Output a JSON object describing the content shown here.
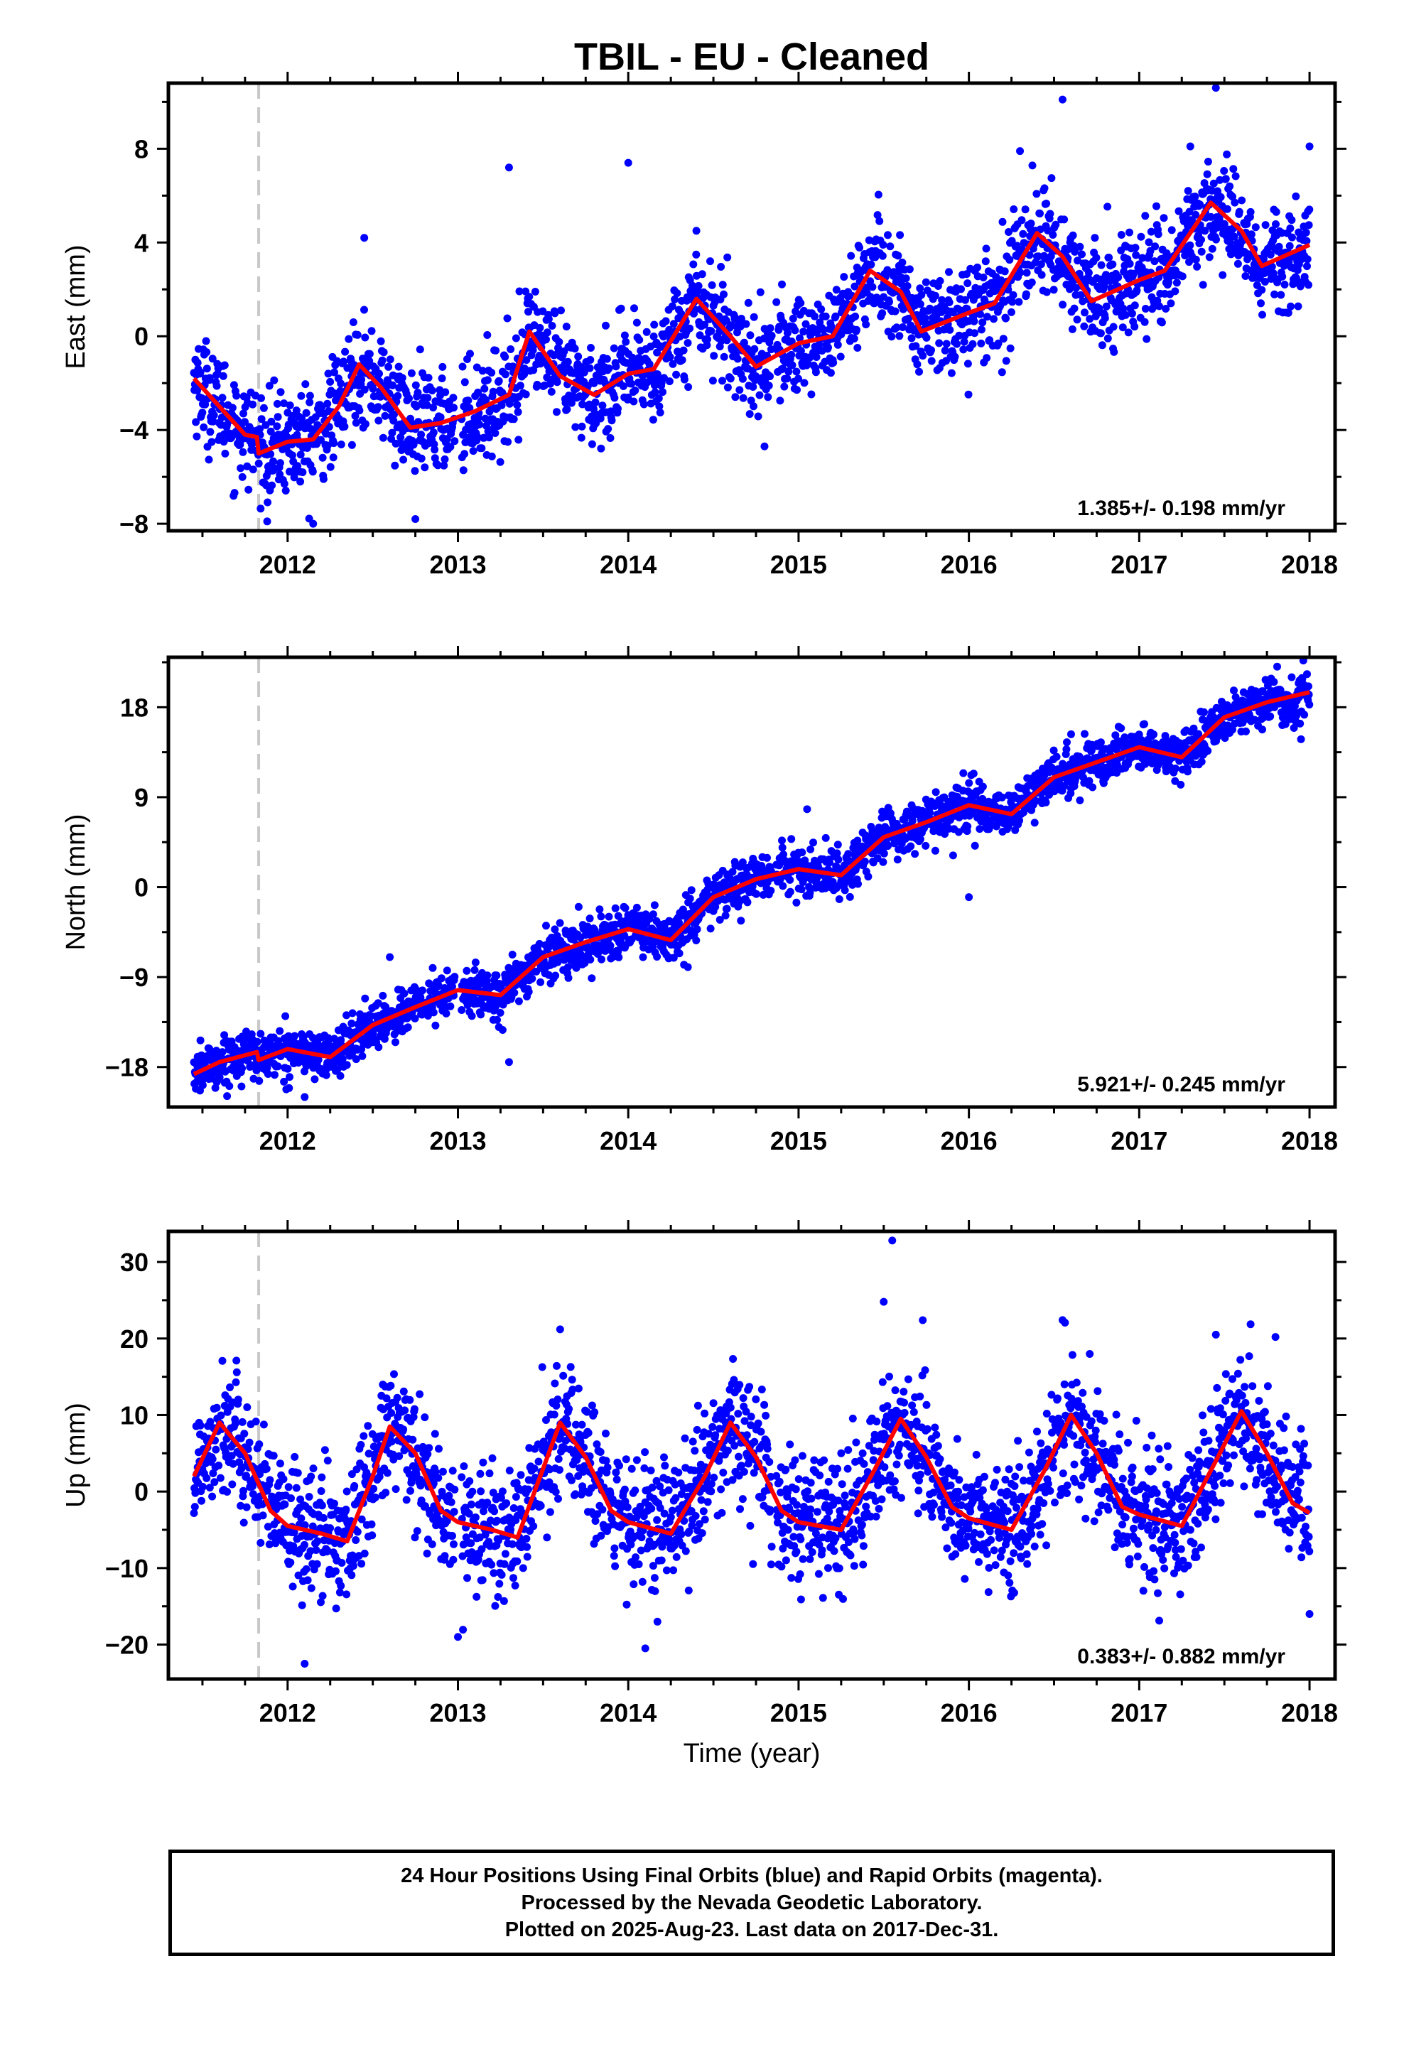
{
  "title": "TBIL  - EU - Cleaned",
  "xlabel": "Time (year)",
  "caption": {
    "line1": "24 Hour Positions Using Final Orbits (blue) and Rapid Orbits (magenta).",
    "line2": "Processed by the Nevada Geodetic Laboratory.",
    "line3": "Plotted on 2025-Aug-23. Last data on 2017-Dec-31."
  },
  "colors": {
    "points": "#0000ff",
    "fit": "#ff0000",
    "event_line": "#c8c8c8"
  },
  "chart_data": [
    {
      "type": "scatter",
      "component": "East",
      "ylabel": "East (mm)",
      "xlim": [
        2011.3,
        2018.15
      ],
      "ylim": [
        -8.3,
        10.8
      ],
      "xticks": [
        2012,
        2013,
        2014,
        2015,
        2016,
        2017,
        2018
      ],
      "yticks": [
        -8,
        -4,
        0,
        4,
        8
      ],
      "ytick_labels": [
        "−8",
        "−4",
        "0",
        "4",
        "8"
      ],
      "event_line_x": 2011.83,
      "rate_label": "1.385+/- 0.198 mm/yr",
      "model": {
        "intercept": -3.05,
        "offset_at_event": -0.6,
        "rate": 1.385,
        "seasonal_amp": 1.45,
        "peak_year_frac": 0.45,
        "scatter": 1.1
      },
      "outliers": [
        [
          2016.55,
          10.1
        ],
        [
          2017.45,
          10.6
        ],
        [
          2013.3,
          7.2
        ],
        [
          2014.0,
          7.4
        ],
        [
          2016.3,
          7.9
        ],
        [
          2017.3,
          8.1
        ],
        [
          2018.0,
          8.1
        ],
        [
          2012.45,
          4.2
        ],
        [
          2014.4,
          4.5
        ],
        [
          2011.88,
          -7.9
        ],
        [
          2012.75,
          -7.8
        ],
        [
          2014.8,
          -4.7
        ],
        [
          2012.15,
          -8.0
        ]
      ],
      "fit": {
        "x": [
          2011.45,
          2011.6,
          2011.75,
          2011.82,
          2011.83,
          2012.0,
          2012.15,
          2012.3,
          2012.42,
          2012.55,
          2012.72,
          2012.9,
          2013.1,
          2013.3,
          2013.42,
          2013.6,
          2013.8,
          2014.0,
          2014.15,
          2014.4,
          2014.6,
          2014.75,
          2015.0,
          2015.2,
          2015.42,
          2015.6,
          2015.72,
          2016.0,
          2016.15,
          2016.4,
          2016.55,
          2016.72,
          2017.0,
          2017.15,
          2017.42,
          2017.6,
          2017.72,
          2018.0
        ],
        "y": [
          -1.8,
          -3.0,
          -4.2,
          -4.3,
          -5.0,
          -4.5,
          -4.4,
          -3.0,
          -1.2,
          -2.2,
          -3.9,
          -3.7,
          -3.2,
          -2.5,
          0.2,
          -1.7,
          -2.5,
          -1.6,
          -1.4,
          1.6,
          0.0,
          -1.3,
          -0.3,
          0.0,
          2.8,
          1.9,
          0.2,
          1.0,
          1.4,
          4.4,
          3.4,
          1.5,
          2.4,
          2.8,
          5.7,
          4.5,
          3.0,
          3.9
        ]
      }
    },
    {
      "type": "scatter",
      "component": "North",
      "ylabel": "North (mm)",
      "xlim": [
        2011.3,
        2018.15
      ],
      "ylim": [
        -22.0,
        23.0
      ],
      "xticks": [
        2012,
        2013,
        2014,
        2015,
        2016,
        2017,
        2018
      ],
      "yticks": [
        -18,
        -9,
        0,
        9,
        18
      ],
      "ytick_labels": [
        "−18",
        "−9",
        "0",
        "9",
        "18"
      ],
      "event_line_x": 2011.83,
      "rate_label": "5.921+/- 0.245 mm/yr",
      "model": {
        "intercept": -17.6,
        "offset_at_event": 0.0,
        "rate": 5.921,
        "seasonal_amp": 0.9,
        "peak_year_frac": 0.7,
        "scatter": 1.2
      },
      "outliers": [
        [
          2012.6,
          -7.0
        ],
        [
          2015.05,
          7.8
        ],
        [
          2016.6,
          15.3
        ],
        [
          2016.0,
          -1.0
        ],
        [
          2013.3,
          -17.5
        ],
        [
          2014.35,
          -8.0
        ],
        [
          2017.95,
          14.8
        ],
        [
          2012.1,
          -21.0
        ]
      ],
      "fit": {
        "x": [
          2011.45,
          2011.6,
          2011.82,
          2011.83,
          2012.0,
          2012.25,
          2012.5,
          2012.75,
          2013.0,
          2013.25,
          2013.5,
          2013.75,
          2014.0,
          2014.25,
          2014.5,
          2014.75,
          2015.0,
          2015.25,
          2015.5,
          2015.75,
          2016.0,
          2016.25,
          2016.5,
          2016.75,
          2017.0,
          2017.25,
          2017.5,
          2017.75,
          2018.0
        ],
        "y": [
          -18.7,
          -17.5,
          -16.5,
          -17.3,
          -16.2,
          -17.0,
          -13.8,
          -12.0,
          -10.3,
          -10.8,
          -7.0,
          -5.5,
          -4.2,
          -5.3,
          -1.0,
          0.8,
          1.8,
          1.2,
          5.0,
          6.5,
          8.2,
          7.3,
          11.0,
          12.5,
          14.0,
          13.0,
          17.0,
          18.5,
          19.5
        ]
      }
    },
    {
      "type": "scatter",
      "component": "Up",
      "ylabel": "Up (mm)",
      "xlim": [
        2011.3,
        2018.15
      ],
      "ylim": [
        -24.5,
        34.0
      ],
      "xticks": [
        2012,
        2013,
        2014,
        2015,
        2016,
        2017,
        2018
      ],
      "yticks": [
        -20,
        -10,
        0,
        10,
        20,
        30
      ],
      "ytick_labels": [
        "−20",
        "−10",
        "0",
        "10",
        "20",
        "30"
      ],
      "event_line_x": 2011.83,
      "rate_label": "0.383+/- 0.882 mm/yr",
      "model": {
        "intercept": 0.0,
        "offset_at_event": 0.0,
        "rate": 0.383,
        "seasonal_amp": 7.5,
        "peak_year_frac": 0.6,
        "scatter": 4.2
      },
      "outliers": [
        [
          2015.55,
          32.8
        ],
        [
          2015.5,
          24.8
        ],
        [
          2016.55,
          22.4
        ],
        [
          2013.6,
          21.2
        ],
        [
          2012.1,
          -22.5
        ],
        [
          2014.1,
          -20.5
        ],
        [
          2013.0,
          -19.0
        ],
        [
          2017.45,
          20.5
        ],
        [
          2017.8,
          20.2
        ],
        [
          2018.0,
          -16.0
        ]
      ],
      "fit": {
        "x": [
          2011.45,
          2011.6,
          2011.75,
          2011.9,
          2012.0,
          2012.2,
          2012.35,
          2012.5,
          2012.6,
          2012.75,
          2012.9,
          2013.0,
          2013.2,
          2013.35,
          2013.5,
          2013.6,
          2013.75,
          2013.9,
          2014.0,
          2014.25,
          2014.45,
          2014.6,
          2014.75,
          2014.9,
          2015.0,
          2015.25,
          2015.45,
          2015.6,
          2015.75,
          2015.9,
          2016.0,
          2016.25,
          2016.45,
          2016.6,
          2016.75,
          2016.9,
          2017.0,
          2017.25,
          2017.45,
          2017.6,
          2017.75,
          2017.9,
          2018.0
        ],
        "y": [
          2.0,
          9.0,
          5.0,
          -2.5,
          -4.5,
          -5.5,
          -6.5,
          2.0,
          8.5,
          5.0,
          -2.5,
          -4.0,
          -5.0,
          -6.0,
          3.0,
          9.0,
          4.5,
          -2.5,
          -4.0,
          -5.5,
          2.0,
          9.0,
          4.5,
          -2.5,
          -4.0,
          -5.0,
          3.0,
          9.5,
          4.5,
          -2.0,
          -3.5,
          -5.0,
          3.0,
          10.0,
          5.0,
          -2.0,
          -3.0,
          -4.5,
          4.0,
          10.5,
          5.0,
          -1.5,
          -2.8
        ]
      }
    }
  ]
}
